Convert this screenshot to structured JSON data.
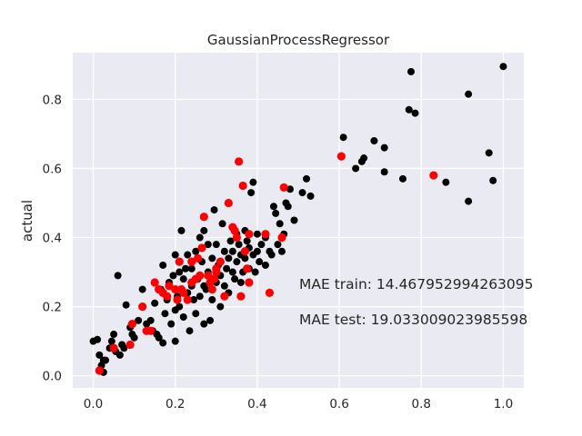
{
  "chart_data": {
    "type": "scatter",
    "title": "GaussianProcessRegressor",
    "xlabel": "",
    "ylabel": "actual",
    "xlim": [
      -0.05,
      1.05
    ],
    "ylim": [
      -0.035,
      0.935
    ],
    "xticks": [
      0.0,
      0.2,
      0.4,
      0.6,
      0.8,
      1.0
    ],
    "xtick_labels": [
      "0.0",
      "0.2",
      "0.4",
      "0.6",
      "0.8",
      "1.0"
    ],
    "yticks": [
      0.0,
      0.2,
      0.4,
      0.6,
      0.8
    ],
    "ytick_labels": [
      "0.0",
      "0.2",
      "0.4",
      "0.6",
      "0.8"
    ],
    "grid": true,
    "background": "#eaeaf2",
    "annotations": [
      {
        "text": "MAE train: 14.467952994263095",
        "x": 0.5,
        "y": 0.26
      },
      {
        "text": "MAE test: 19.033009023985598",
        "x": 0.5,
        "y": 0.16
      }
    ],
    "series": [
      {
        "color": "#000000",
        "points": [
          [
            0.0,
            0.1
          ],
          [
            0.01,
            0.105
          ],
          [
            0.015,
            0.06
          ],
          [
            0.02,
            0.03
          ],
          [
            0.025,
            0.01
          ],
          [
            0.03,
            0.045
          ],
          [
            0.04,
            0.08
          ],
          [
            0.045,
            0.1
          ],
          [
            0.05,
            0.12
          ],
          [
            0.055,
            0.07
          ],
          [
            0.06,
            0.29
          ],
          [
            0.065,
            0.06
          ],
          [
            0.07,
            0.09
          ],
          [
            0.075,
            0.08
          ],
          [
            0.08,
            0.205
          ],
          [
            0.09,
            0.14
          ],
          [
            0.095,
            0.12
          ],
          [
            0.1,
            0.11
          ],
          [
            0.11,
            0.16
          ],
          [
            0.12,
            0.25
          ],
          [
            0.13,
            0.15
          ],
          [
            0.14,
            0.16
          ],
          [
            0.145,
            0.13
          ],
          [
            0.15,
            0.21
          ],
          [
            0.155,
            0.12
          ],
          [
            0.16,
            0.11
          ],
          [
            0.165,
            0.25
          ],
          [
            0.17,
            0.095
          ],
          [
            0.17,
            0.32
          ],
          [
            0.175,
            0.18
          ],
          [
            0.18,
            0.22
          ],
          [
            0.185,
            0.27
          ],
          [
            0.19,
            0.15
          ],
          [
            0.195,
            0.29
          ],
          [
            0.2,
            0.19
          ],
          [
            0.2,
            0.35
          ],
          [
            0.205,
            0.23
          ],
          [
            0.21,
            0.2
          ],
          [
            0.215,
            0.42
          ],
          [
            0.22,
            0.17
          ],
          [
            0.22,
            0.28
          ],
          [
            0.225,
            0.31
          ],
          [
            0.23,
            0.24
          ],
          [
            0.23,
            0.35
          ],
          [
            0.235,
            0.13
          ],
          [
            0.24,
            0.26
          ],
          [
            0.24,
            0.31
          ],
          [
            0.245,
            0.22
          ],
          [
            0.25,
            0.18
          ],
          [
            0.25,
            0.36
          ],
          [
            0.255,
            0.28
          ],
          [
            0.26,
            0.4
          ],
          [
            0.26,
            0.23
          ],
          [
            0.265,
            0.33
          ],
          [
            0.27,
            0.42
          ],
          [
            0.27,
            0.15
          ],
          [
            0.275,
            0.25
          ],
          [
            0.28,
            0.38
          ],
          [
            0.28,
            0.3
          ],
          [
            0.285,
            0.16
          ],
          [
            0.29,
            0.22
          ],
          [
            0.29,
            0.34
          ],
          [
            0.295,
            0.48
          ],
          [
            0.3,
            0.27
          ],
          [
            0.3,
            0.38
          ],
          [
            0.305,
            0.32
          ],
          [
            0.31,
            0.2
          ],
          [
            0.31,
            0.29
          ],
          [
            0.315,
            0.44
          ],
          [
            0.32,
            0.36
          ],
          [
            0.32,
            0.26
          ],
          [
            0.325,
            0.31
          ],
          [
            0.33,
            0.24
          ],
          [
            0.33,
            0.34
          ],
          [
            0.335,
            0.39
          ],
          [
            0.34,
            0.3
          ],
          [
            0.34,
            0.36
          ],
          [
            0.345,
            0.28
          ],
          [
            0.35,
            0.41
          ],
          [
            0.35,
            0.33
          ],
          [
            0.355,
            0.38
          ],
          [
            0.36,
            0.27
          ],
          [
            0.36,
            0.35
          ],
          [
            0.365,
            0.3
          ],
          [
            0.37,
            0.42
          ],
          [
            0.37,
            0.34
          ],
          [
            0.375,
            0.39
          ],
          [
            0.38,
            0.31
          ],
          [
            0.38,
            0.37
          ],
          [
            0.385,
            0.53
          ],
          [
            0.39,
            0.35
          ],
          [
            0.39,
            0.56
          ],
          [
            0.395,
            0.3
          ],
          [
            0.4,
            0.36
          ],
          [
            0.4,
            0.41
          ],
          [
            0.405,
            0.33
          ],
          [
            0.41,
            0.38
          ],
          [
            0.42,
            0.32
          ],
          [
            0.42,
            0.4
          ],
          [
            0.43,
            0.36
          ],
          [
            0.435,
            0.35
          ],
          [
            0.44,
            0.49
          ],
          [
            0.445,
            0.47
          ],
          [
            0.45,
            0.38
          ],
          [
            0.455,
            0.44
          ],
          [
            0.46,
            0.36
          ],
          [
            0.465,
            0.41
          ],
          [
            0.47,
            0.5
          ],
          [
            0.475,
            0.49
          ],
          [
            0.48,
            0.54
          ],
          [
            0.49,
            0.45
          ],
          [
            0.51,
            0.53
          ],
          [
            0.52,
            0.57
          ],
          [
            0.53,
            0.52
          ],
          [
            0.61,
            0.69
          ],
          [
            0.64,
            0.6
          ],
          [
            0.655,
            0.62
          ],
          [
            0.66,
            0.63
          ],
          [
            0.685,
            0.68
          ],
          [
            0.71,
            0.66
          ],
          [
            0.71,
            0.59
          ],
          [
            0.755,
            0.57
          ],
          [
            0.77,
            0.77
          ],
          [
            0.775,
            0.88
          ],
          [
            0.785,
            0.76
          ],
          [
            0.86,
            0.56
          ],
          [
            0.915,
            0.815
          ],
          [
            0.915,
            0.505
          ],
          [
            0.965,
            0.645
          ],
          [
            0.975,
            0.565
          ],
          [
            1.0,
            0.895
          ],
          [
            0.025,
            0.045
          ],
          [
            0.2,
            0.1
          ],
          [
            0.21,
            0.3
          ],
          [
            0.27,
            0.26
          ]
        ]
      },
      {
        "color": "#ff0000",
        "points": [
          [
            0.015,
            0.015
          ],
          [
            0.05,
            0.08
          ],
          [
            0.09,
            0.09
          ],
          [
            0.095,
            0.15
          ],
          [
            0.12,
            0.2
          ],
          [
            0.13,
            0.13
          ],
          [
            0.14,
            0.13
          ],
          [
            0.15,
            0.27
          ],
          [
            0.16,
            0.25
          ],
          [
            0.17,
            0.24
          ],
          [
            0.18,
            0.23
          ],
          [
            0.185,
            0.26
          ],
          [
            0.2,
            0.25
          ],
          [
            0.205,
            0.22
          ],
          [
            0.21,
            0.33
          ],
          [
            0.215,
            0.25
          ],
          [
            0.22,
            0.24
          ],
          [
            0.23,
            0.22
          ],
          [
            0.24,
            0.33
          ],
          [
            0.25,
            0.28
          ],
          [
            0.255,
            0.34
          ],
          [
            0.26,
            0.29
          ],
          [
            0.265,
            0.37
          ],
          [
            0.27,
            0.46
          ],
          [
            0.28,
            0.29
          ],
          [
            0.285,
            0.27
          ],
          [
            0.29,
            0.25
          ],
          [
            0.295,
            0.28
          ],
          [
            0.3,
            0.31
          ],
          [
            0.31,
            0.33
          ],
          [
            0.32,
            0.23
          ],
          [
            0.33,
            0.5
          ],
          [
            0.34,
            0.43
          ],
          [
            0.345,
            0.42
          ],
          [
            0.35,
            0.4
          ],
          [
            0.355,
            0.62
          ],
          [
            0.36,
            0.23
          ],
          [
            0.365,
            0.55
          ],
          [
            0.37,
            0.36
          ],
          [
            0.375,
            0.31
          ],
          [
            0.38,
            0.41
          ],
          [
            0.38,
            0.27
          ],
          [
            0.42,
            0.41
          ],
          [
            0.43,
            0.24
          ],
          [
            0.46,
            0.4
          ],
          [
            0.465,
            0.545
          ],
          [
            0.605,
            0.635
          ],
          [
            0.83,
            0.58
          ],
          [
            0.24,
            0.27
          ],
          [
            0.3,
            0.3
          ]
        ]
      }
    ]
  }
}
